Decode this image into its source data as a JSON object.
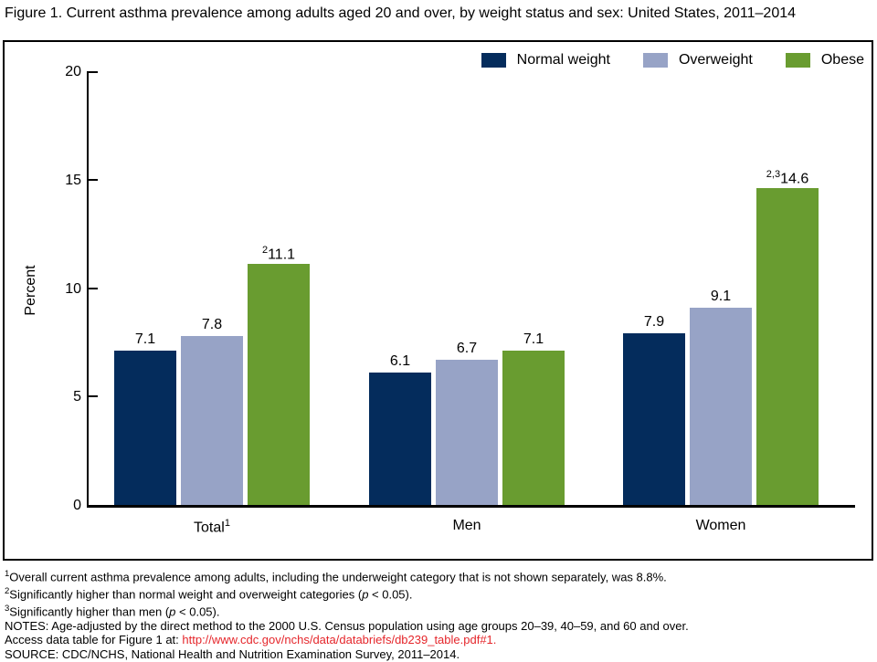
{
  "title": "Figure 1. Current asthma prevalence among adults aged 20 and over, by weight status and sex: United States, 2011–2014",
  "colors": {
    "normal_weight": "#042c5c",
    "overweight": "#97a3c6",
    "obese": "#699c30",
    "axis": "#000000",
    "link_red": "#e5262b"
  },
  "chart_data": {
    "type": "bar",
    "title": "Figure 1. Current asthma prevalence among adults aged 20 and over, by weight status and sex: United States, 2011–2014",
    "xlabel": "",
    "ylabel": "Percent",
    "ylim": [
      0,
      20
    ],
    "yticks": [
      0,
      5,
      10,
      15,
      20
    ],
    "grid": false,
    "legend_position": "top-right",
    "categories": [
      {
        "label": "Total",
        "sup": "1"
      },
      {
        "label": "Men",
        "sup": ""
      },
      {
        "label": "Women",
        "sup": ""
      }
    ],
    "series": [
      {
        "name": "Normal weight",
        "color": "#042c5c",
        "values": [
          7.1,
          6.1,
          7.9
        ],
        "label_sups": [
          "",
          "",
          ""
        ]
      },
      {
        "name": "Overweight",
        "color": "#97a3c6",
        "values": [
          7.8,
          6.7,
          9.1
        ],
        "label_sups": [
          "",
          "",
          ""
        ]
      },
      {
        "name": "Obese",
        "color": "#699c30",
        "values": [
          11.1,
          7.1,
          14.6
        ],
        "label_sups": [
          "2",
          "",
          "2,3"
        ]
      }
    ]
  },
  "footnotes": [
    [
      {
        "type": "sup",
        "t": "1"
      },
      {
        "type": "text",
        "t": "Overall current asthma prevalence among adults, including the underweight category that is not shown separately, was 8.8%."
      }
    ],
    [
      {
        "type": "sup",
        "t": "2"
      },
      {
        "type": "text",
        "t": "Significantly higher than normal weight and overweight categories ("
      },
      {
        "type": "italic",
        "t": "p"
      },
      {
        "type": "text",
        "t": " < 0.05)."
      }
    ],
    [
      {
        "type": "sup",
        "t": "3"
      },
      {
        "type": "text",
        "t": "Significantly higher than men ("
      },
      {
        "type": "italic",
        "t": "p"
      },
      {
        "type": "text",
        "t": " < 0.05)."
      }
    ],
    [
      {
        "type": "text",
        "t": "NOTES: Age-adjusted by the direct method to the 2000 U.S. Census population using age groups 20–39, 40–59, and 60 and over."
      }
    ],
    [
      {
        "type": "text",
        "t": "Access data table for Figure 1 at: "
      },
      {
        "type": "link",
        "t": "http://www.cdc.gov/nchs/data/databriefs/db239_table.pdf#1."
      }
    ],
    [
      {
        "type": "text",
        "t": "SOURCE: CDC/NCHS, National Health and Nutrition Examination Survey, 2011–2014."
      }
    ]
  ]
}
